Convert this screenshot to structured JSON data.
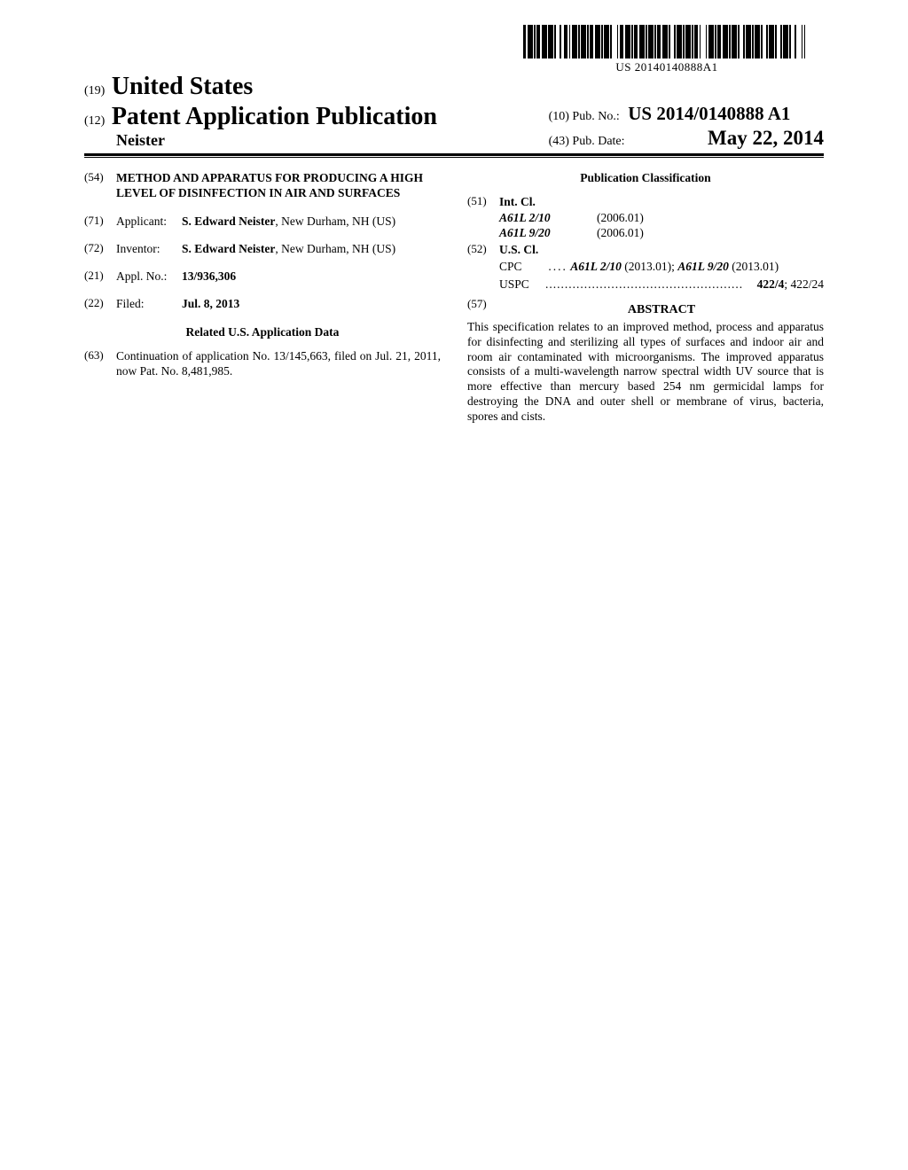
{
  "barcode": {
    "text_below": "US 20140140888A1",
    "pattern": [
      3,
      2,
      6,
      1,
      2,
      1,
      4,
      2,
      6,
      1,
      6,
      1,
      2,
      4,
      2,
      3,
      4,
      2,
      1,
      2,
      6,
      1,
      2,
      1,
      6,
      1,
      2,
      1,
      4,
      2,
      6,
      1,
      2,
      1,
      6,
      1,
      2,
      6,
      1,
      2,
      4,
      2,
      6,
      1,
      2,
      1,
      4,
      2,
      6,
      1,
      2,
      1,
      6,
      1,
      2,
      1,
      4,
      2,
      6,
      1,
      2,
      4,
      2,
      1,
      6,
      1,
      2,
      1,
      6,
      1,
      2,
      1,
      4,
      2,
      1,
      6,
      1,
      2,
      6,
      1,
      2,
      1,
      4,
      2,
      6,
      1,
      2,
      1,
      6,
      1,
      2,
      4,
      2,
      1,
      6,
      1,
      2,
      1,
      6,
      1,
      2,
      4,
      2,
      1,
      6,
      1,
      2,
      4,
      2,
      1,
      6,
      1,
      2,
      4,
      2,
      6,
      1,
      2,
      1,
      6
    ]
  },
  "header": {
    "code_country": "(19)",
    "country": "United States",
    "code_pubtype": "(12)",
    "pub_type": "Patent Application Publication",
    "author_surname": "Neister",
    "code_pubno": "(10)",
    "pubno_label": "Pub. No.:",
    "pubno_value": "US 2014/0140888 A1",
    "code_pubdate": "(43)",
    "pubdate_label": "Pub. Date:",
    "pubdate_value": "May 22, 2014"
  },
  "left_column": {
    "title": {
      "code": "(54)",
      "text": "METHOD AND APPARATUS FOR PRODUCING A HIGH LEVEL OF DISINFECTION IN AIR AND SURFACES"
    },
    "applicant": {
      "code": "(71)",
      "label": "Applicant:",
      "name": "S. Edward Neister",
      "location": ", New Durham, NH (US)"
    },
    "inventor": {
      "code": "(72)",
      "label": "Inventor:",
      "name": "S. Edward Neister",
      "location": ", New Durham, NH (US)"
    },
    "appl_no": {
      "code": "(21)",
      "label": "Appl. No.:",
      "value": "13/936,306"
    },
    "filed": {
      "code": "(22)",
      "label": "Filed:",
      "value": "Jul. 8, 2013"
    },
    "related_header": "Related U.S. Application Data",
    "continuation": {
      "code": "(63)",
      "text": "Continuation of application No. 13/145,663, filed on Jul. 21, 2011, now Pat. No. 8,481,985."
    }
  },
  "right_column": {
    "pub_class_header": "Publication Classification",
    "intcl": {
      "code": "(51)",
      "label": "Int. Cl.",
      "items": [
        {
          "code": "A61L 2/10",
          "date": "(2006.01)"
        },
        {
          "code": "A61L 9/20",
          "date": "(2006.01)"
        }
      ]
    },
    "uscl": {
      "code": "(52)",
      "label": "U.S. Cl.",
      "cpc_label": "CPC",
      "cpc_dots": "....",
      "cpc_value_1": "A61L 2/10",
      "cpc_date_1": " (2013.01); ",
      "cpc_value_2": "A61L 9/20",
      "cpc_date_2": " (2013.01)",
      "uspc_label": "USPC",
      "uspc_primary": "422/4",
      "uspc_secondary": "; 422/24"
    },
    "abstract": {
      "code": "(57)",
      "header": "ABSTRACT",
      "body": "This specification relates to an improved method, process and apparatus for disinfecting and sterilizing all types of surfaces and indoor air and room air contaminated with microorganisms. The improved apparatus consists of a multi-wavelength narrow spectral width UV source that is more effective than mercury based 254 nm germicidal lamps for destroying the DNA and outer shell or membrane of virus, bacteria, spores and cists."
    }
  }
}
